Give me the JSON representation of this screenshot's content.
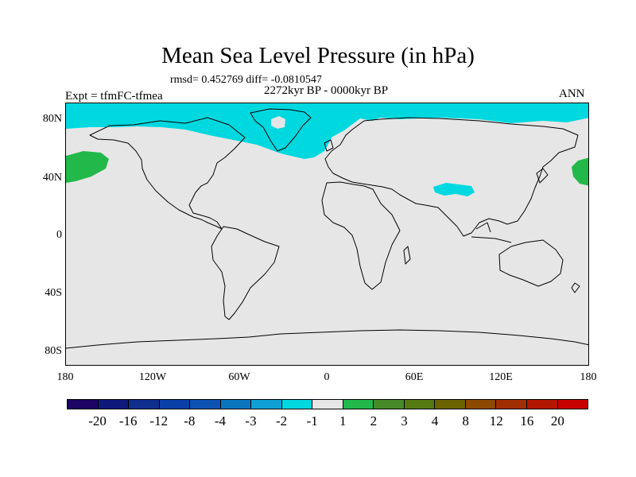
{
  "title": "Mean Sea Level Pressure (in hPa)",
  "stats_text": "rmsd= 0.452769 diff= -0.0810547",
  "period_text": "2272kyr BP - 0000kyr BP",
  "experiment_text": "Expt = tfmFC-tfmea",
  "season_text": "ANN",
  "map": {
    "projection": "cylindrical equidistant",
    "lat_range": [
      -90,
      90
    ],
    "lon_range": [
      -180,
      180
    ],
    "background_color": "#e6e6e6",
    "y_axis_labels": [
      "80N",
      "40N",
      "0",
      "40S",
      "80S"
    ],
    "x_axis_labels": [
      "180",
      "120W",
      "60W",
      "0",
      "60E",
      "120E",
      "180"
    ],
    "anomaly_regions": [
      {
        "name": "Arctic and North Atlantic",
        "bin": "-2 to -1",
        "color": "#00d8e0"
      },
      {
        "name": "Tibetan Plateau",
        "bin": "-2 to -1",
        "color": "#00d8e0"
      },
      {
        "name": "North Pacific (west)",
        "bin": "1 to 2",
        "color": "#22b84a"
      },
      {
        "name": "North Pacific (east)",
        "bin": "1 to 2",
        "color": "#22b84a"
      }
    ]
  },
  "colorbar": {
    "colors": [
      "#1c0563",
      "#0d1a7c",
      "#0f2f8f",
      "#0a40a8",
      "#0c52b3",
      "#0a76c0",
      "#0fa0d5",
      "#00d8e0",
      "#e6e6e6",
      "#22b84a",
      "#468a29",
      "#557a14",
      "#6c6300",
      "#8b4a00",
      "#a12e00",
      "#b41700",
      "#c90000"
    ],
    "labels": [
      "-20",
      "-16",
      "-12",
      "-8",
      "-4",
      "-3",
      "-2",
      "-1",
      "1",
      "2",
      "3",
      "4",
      "8",
      "12",
      "16",
      "20"
    ]
  }
}
